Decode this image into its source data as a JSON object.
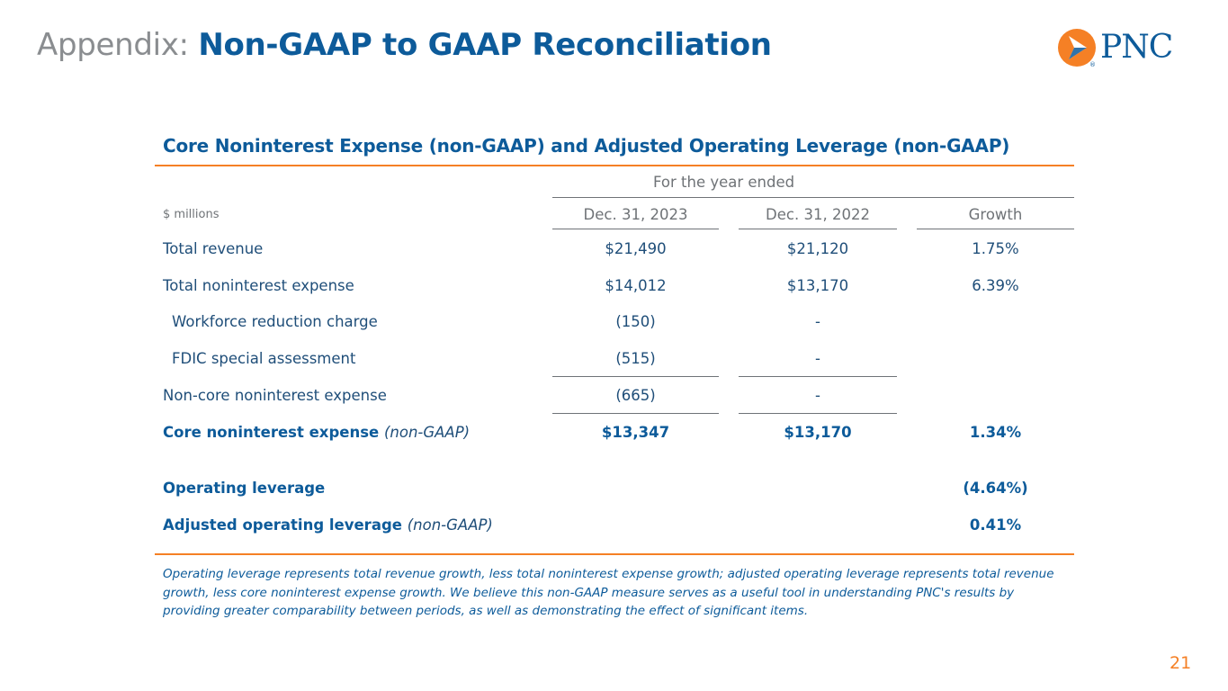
{
  "title": {
    "prefix": "Appendix:",
    "main": "Non-GAAP to GAAP Reconciliation"
  },
  "logo": {
    "text": "PNC",
    "registered": "®",
    "colors": {
      "orange": "#f58025",
      "blue": "#0d5b9a"
    }
  },
  "section_title": "Core Noninterest Expense (non-GAAP) and Adjusted Operating Leverage (non-GAAP)",
  "table": {
    "period_header": "For the year ended",
    "units_label": "$ millions",
    "columns": [
      "Dec. 31, 2023",
      "Dec. 31, 2022",
      "Growth"
    ],
    "rows": [
      {
        "label": "Total revenue",
        "values": [
          "$21,490",
          "$21,120",
          "1.75%"
        ]
      },
      {
        "label": "Total noninterest expense",
        "values": [
          "$14,012",
          "$13,170",
          "6.39%"
        ]
      },
      {
        "label": "Workforce reduction charge",
        "values": [
          "(150)",
          "-",
          ""
        ]
      },
      {
        "label": "FDIC special assessment",
        "values": [
          "(515)",
          "-",
          ""
        ]
      },
      {
        "label": "Non-core noninterest expense",
        "values": [
          "(665)",
          "-",
          ""
        ]
      },
      {
        "label": "Core noninterest expense",
        "qualifier": "(non-GAAP)",
        "values": [
          "$13,347",
          "$13,170",
          "1.34%"
        ]
      },
      {
        "label": "Operating leverage",
        "values": [
          "",
          "",
          "(4.64%)"
        ]
      },
      {
        "label": "Adjusted operating leverage",
        "qualifier": "(non-GAAP)",
        "values": [
          "",
          "",
          "0.41%"
        ]
      }
    ]
  },
  "footnote": "Operating leverage represents total revenue growth, less total noninterest expense growth; adjusted operating leverage represents total revenue growth, less core noninterest expense growth. We believe this non-GAAP measure serves as a useful tool in understanding PNC's results by providing greater comparability between periods, as well as demonstrating the effect of significant items.",
  "page_number": "21"
}
